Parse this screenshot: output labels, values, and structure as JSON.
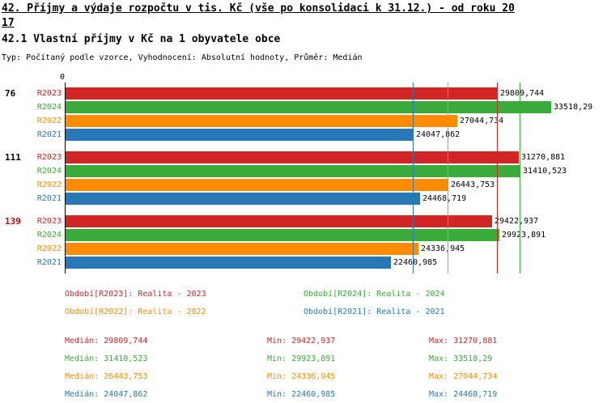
{
  "page": {
    "title_line1": "42. Příjmy a výdaje rozpočtu v tis. Kč (vše po konsolidaci k 31.12.) - od roku 20",
    "title_line2": "17",
    "section_title": "42.1 Vlastní příjmy v Kč na 1 obyvatele obce",
    "meta_line": "Typ: Počítaný podle vzorce, Vyhodnocení: Absolutní hodnoty, Průměr: Medián"
  },
  "chart_data": {
    "type": "bar",
    "orientation": "horizontal",
    "title": "42.1 Vlastní příjmy v Kč na 1 obyvatele obce",
    "zero_label": "0",
    "xlim": [
      0,
      33518.29
    ],
    "grid": false,
    "legend_position": "bottom",
    "row_order": [
      "R2023",
      "R2024",
      "R2022",
      "R2021"
    ],
    "series_colors": {
      "R2023": "#d22626",
      "R2024": "#3aaa3a",
      "R2022": "#ff8c00",
      "R2021": "#2878b8"
    },
    "groups": [
      {
        "label": "76",
        "label_color": "#000000",
        "bars": [
          {
            "series": "R2023",
            "value": 29809.744,
            "value_label": "29809,744"
          },
          {
            "series": "R2024",
            "value": 33518.29,
            "value_label": "33518,29"
          },
          {
            "series": "R2022",
            "value": 27044.734,
            "value_label": "27044,734"
          },
          {
            "series": "R2021",
            "value": 24047.862,
            "value_label": "24047,862"
          }
        ]
      },
      {
        "label": "111",
        "label_color": "#000000",
        "bars": [
          {
            "series": "R2023",
            "value": 31270.881,
            "value_label": "31270,881"
          },
          {
            "series": "R2024",
            "value": 31410.523,
            "value_label": "31410,523"
          },
          {
            "series": "R2022",
            "value": 26443.753,
            "value_label": "26443,753"
          },
          {
            "series": "R2021",
            "value": 24468.719,
            "value_label": "24468,719"
          }
        ]
      },
      {
        "label": "139",
        "label_color": "#cc0000",
        "bars": [
          {
            "series": "R2023",
            "value": 29422.937,
            "value_label": "29422,937"
          },
          {
            "series": "R2024",
            "value": 29923.891,
            "value_label": "29923,891"
          },
          {
            "series": "R2022",
            "value": 24336.945,
            "value_label": "24336,945"
          },
          {
            "series": "R2021",
            "value": 22460.985,
            "value_label": "22460,985"
          }
        ]
      }
    ],
    "median_lines": [
      {
        "series": "R2023",
        "value": 29809.744
      },
      {
        "series": "R2024",
        "value": 31410.523
      },
      {
        "series": "R2022",
        "value": 26443.753
      },
      {
        "series": "R2021",
        "value": 24047.862
      }
    ]
  },
  "legend": {
    "items": [
      {
        "series": "R2023",
        "label": "Období[R2023]: Realita - 2023"
      },
      {
        "series": "R2024",
        "label": "Období[R2024]: Realita - 2024"
      },
      {
        "series": "R2022",
        "label": "Období[R2022]: Realita - 2022"
      },
      {
        "series": "R2021",
        "label": "Období[R2021]: Realita - 2021"
      }
    ]
  },
  "stats": {
    "rows": [
      {
        "series": "R2023",
        "median": "Medián: 29809,744",
        "min": "Min: 29422,937",
        "max": "Max: 31270,881"
      },
      {
        "series": "R2024",
        "median": "Medián: 31410,523",
        "min": "Min: 29923,891",
        "max": "Max: 33518,29"
      },
      {
        "series": "R2022",
        "median": "Medián: 26443,753",
        "min": "Min: 24336,945",
        "max": "Max: 27044,734"
      },
      {
        "series": "R2021",
        "median": "Medián: 24047,862",
        "min": "Min: 22460,985",
        "max": "Max: 24468,719"
      }
    ]
  }
}
